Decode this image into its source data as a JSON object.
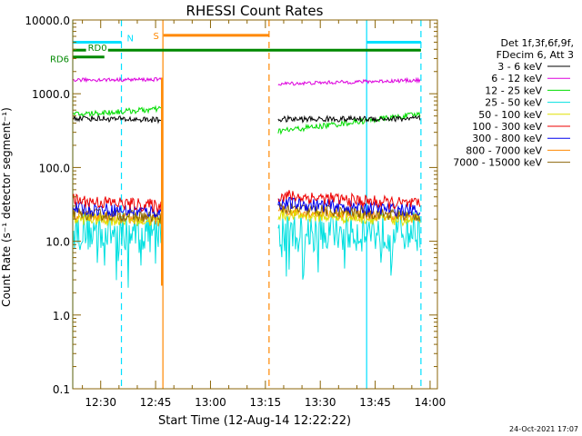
{
  "chart_data": {
    "type": "line",
    "title": "RHESSI Count Rates",
    "xlabel": "Start Time (12-Aug-14 12:22:22)",
    "ylabel": "Count Rate (s⁻¹ detector segment⁻¹)",
    "yscale": "log",
    "ylim": [
      0.1,
      10000
    ],
    "xlim": [
      "12:22:22",
      "14:02:00"
    ],
    "x_ticks": [
      "12:30",
      "12:45",
      "13:00",
      "13:15",
      "13:30",
      "13:45",
      "14:00"
    ],
    "y_ticks": [
      "0.1",
      "1.0",
      "10.0",
      "100.0",
      "1000.0",
      "10000.0"
    ],
    "grid": false,
    "legend_position": "right",
    "legend_header": [
      "Det 1f,3f,6f,9f,",
      "FDecim 6, Att 3"
    ],
    "footer": "24-Oct-2021 17:07",
    "series": [
      {
        "name": "3 - 6 keV",
        "color": "#000000",
        "segments": [
          {
            "x": [
              "12:22:22",
              "12:46:30"
            ],
            "y": [
              470,
              440
            ]
          },
          {
            "x": [
              "13:18:30",
              "13:57:30"
            ],
            "y": [
              450,
              460
            ]
          }
        ]
      },
      {
        "name": "6 - 12 keV",
        "color": "#dd00dd",
        "segments": [
          {
            "x": [
              "12:22:22",
              "12:46:30"
            ],
            "y": [
              1540,
              1560
            ]
          },
          {
            "x": [
              "13:18:30",
              "13:57:30"
            ],
            "y": [
              1360,
              1530
            ]
          }
        ]
      },
      {
        "name": "12 - 25 keV",
        "color": "#00dd00",
        "segments": [
          {
            "x": [
              "12:22:22",
              "12:46:30"
            ],
            "y": [
              520,
              620
            ]
          },
          {
            "x": [
              "13:18:30",
              "13:57:30"
            ],
            "y": [
              310,
              530
            ]
          }
        ]
      },
      {
        "name": "25 - 50 keV",
        "color": "#00e0e0",
        "segments": [
          {
            "x": [
              "12:22:22",
              "12:46:30"
            ],
            "y": [
              14,
              13
            ]
          },
          {
            "x": [
              "13:18:30",
              "13:57:30"
            ],
            "y": [
              13,
              14
            ]
          }
        ]
      },
      {
        "name": "50 - 100 keV",
        "color": "#e0e000",
        "segments": [
          {
            "x": [
              "12:22:22",
              "12:46:30"
            ],
            "y": [
              20,
              19
            ]
          },
          {
            "x": [
              "13:18:30",
              "13:57:30"
            ],
            "y": [
              23,
              19
            ]
          }
        ]
      },
      {
        "name": "100 - 300 keV",
        "color": "#ee0000",
        "segments": [
          {
            "x": [
              "12:22:22",
              "12:46:30"
            ],
            "y": [
              36,
              30
            ]
          },
          {
            "x": [
              "13:18:30",
              "13:57:30"
            ],
            "y": [
              42,
              31
            ]
          }
        ]
      },
      {
        "name": "300 - 800 keV",
        "color": "#0000ee",
        "segments": [
          {
            "x": [
              "12:22:22",
              "12:46:30"
            ],
            "y": [
              28,
              25
            ]
          },
          {
            "x": [
              "13:18:30",
              "13:57:30"
            ],
            "y": [
              33,
              26
            ]
          }
        ]
      },
      {
        "name": "800 - 7000 keV",
        "color": "#ff8800",
        "segments": [
          {
            "x": [
              "12:22:22",
              "12:46:30"
            ],
            "y": [
              22,
              19
            ]
          },
          {
            "x": [
              "13:18:30",
              "13:57:30"
            ],
            "y": [
              26,
              21
            ]
          }
        ]
      },
      {
        "name": "7000 - 15000 keV",
        "color": "#8b6508",
        "segments": [
          {
            "x": [
              "12:22:22",
              "12:46:30"
            ],
            "y": [
              24,
              21
            ]
          },
          {
            "x": [
              "13:18:30",
              "13:57:30"
            ],
            "y": [
              28,
              22
            ]
          }
        ]
      }
    ],
    "state_bars": [
      {
        "label": "N",
        "color": "#00e0ff",
        "y": 5000,
        "ranges": [
          [
            "12:22:22",
            "12:35:40"
          ],
          [
            "13:42:40",
            "13:57:30"
          ]
        ]
      },
      {
        "label": "S",
        "color": "#ff8800",
        "y": 6200,
        "ranges": [
          [
            "12:47:10",
            "13:16:00"
          ]
        ]
      },
      {
        "label": "RD0",
        "color": "#008800",
        "y": 3900,
        "ranges": [
          [
            "12:22:22",
            "12:26:00"
          ],
          [
            "12:32:00",
            "13:57:30"
          ]
        ]
      },
      {
        "label": "RD6",
        "color": "#008800",
        "y": 3150,
        "ranges": [
          [
            "12:22:22",
            "12:31:00"
          ]
        ]
      }
    ],
    "vlines": [
      {
        "t": "12:22:22",
        "color": "#00e0ff",
        "style": "solid"
      },
      {
        "t": "12:35:40",
        "color": "#00e0ff",
        "style": "dashed"
      },
      {
        "t": "12:47:00",
        "color": "#ff8800",
        "style": "solid"
      },
      {
        "t": "13:16:00",
        "color": "#ff8800",
        "style": "dashed"
      },
      {
        "t": "13:42:40",
        "color": "#00e0ff",
        "style": "solid"
      },
      {
        "t": "13:57:30",
        "color": "#00e0ff",
        "style": "dashed"
      }
    ],
    "transition": {
      "t": "12:46:40",
      "color": "#ff8800",
      "y": [
        2.5,
        1650
      ]
    },
    "axis_color": "#8b6508"
  }
}
